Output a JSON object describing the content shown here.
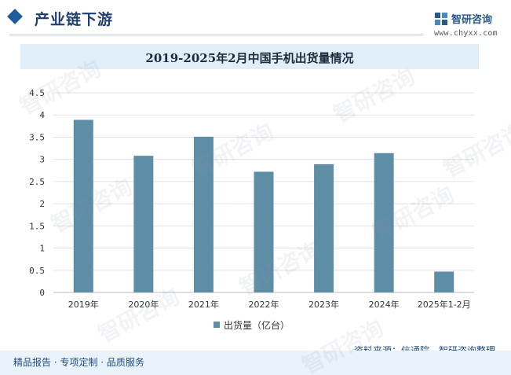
{
  "header": {
    "section_title": "产业链下游",
    "logo_name": "智研咨询",
    "logo_url": "www.chyxx.com"
  },
  "chart_data": {
    "type": "bar",
    "title": "2019-2025年2月中国手机出货量情况",
    "categories": [
      "2019年",
      "2020年",
      "2021年",
      "2022年",
      "2023年",
      "2024年",
      "2025年1-2月"
    ],
    "series": [
      {
        "name": "出货量（亿台）",
        "values": [
          3.89,
          3.08,
          3.51,
          2.72,
          2.89,
          3.14,
          0.47
        ],
        "color": "#5e8da6"
      }
    ],
    "yticks": [
      "0",
      "0.5",
      "1",
      "1.5",
      "2",
      "2.5",
      "3",
      "3.5",
      "4",
      "4.5"
    ],
    "ylim": [
      0,
      4.5
    ],
    "grid": true,
    "legend": "bottom-center"
  },
  "footer": {
    "source": "资料来源：信通院、智研咨询整理",
    "services": "精品报告 · 专项定制 · 品质服务"
  },
  "watermark": "智研咨询"
}
